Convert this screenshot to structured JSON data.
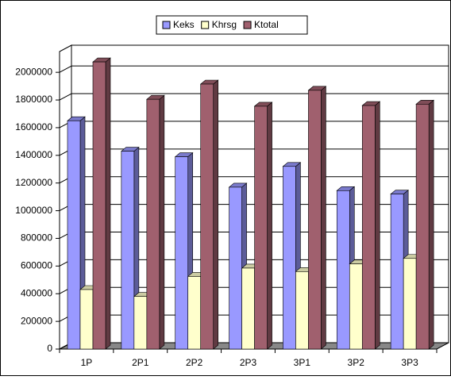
{
  "chart_data": {
    "type": "bar3d",
    "categories": [
      "1P",
      "2P1",
      "2P2",
      "2P3",
      "3P1",
      "3P2",
      "3P3"
    ],
    "series": [
      {
        "name": "Keks",
        "color": "#9999ff",
        "values": [
          1650000,
          1430000,
          1390000,
          1170000,
          1320000,
          1145000,
          1120000
        ]
      },
      {
        "name": "Khrsg",
        "color": "#ffffcc",
        "values": [
          430000,
          380000,
          525000,
          585000,
          560000,
          615000,
          655000
        ]
      },
      {
        "name": "Ktotal",
        "color": "#a0606e",
        "values": [
          2075000,
          1805000,
          1915000,
          1755000,
          1870000,
          1760000,
          1770000
        ]
      }
    ],
    "ylim": [
      0,
      2150000
    ],
    "yticks": [
      0,
      200000,
      400000,
      600000,
      800000,
      1000000,
      1200000,
      1400000,
      1600000,
      1800000,
      2000000
    ],
    "grid": true,
    "legend": "top"
  }
}
